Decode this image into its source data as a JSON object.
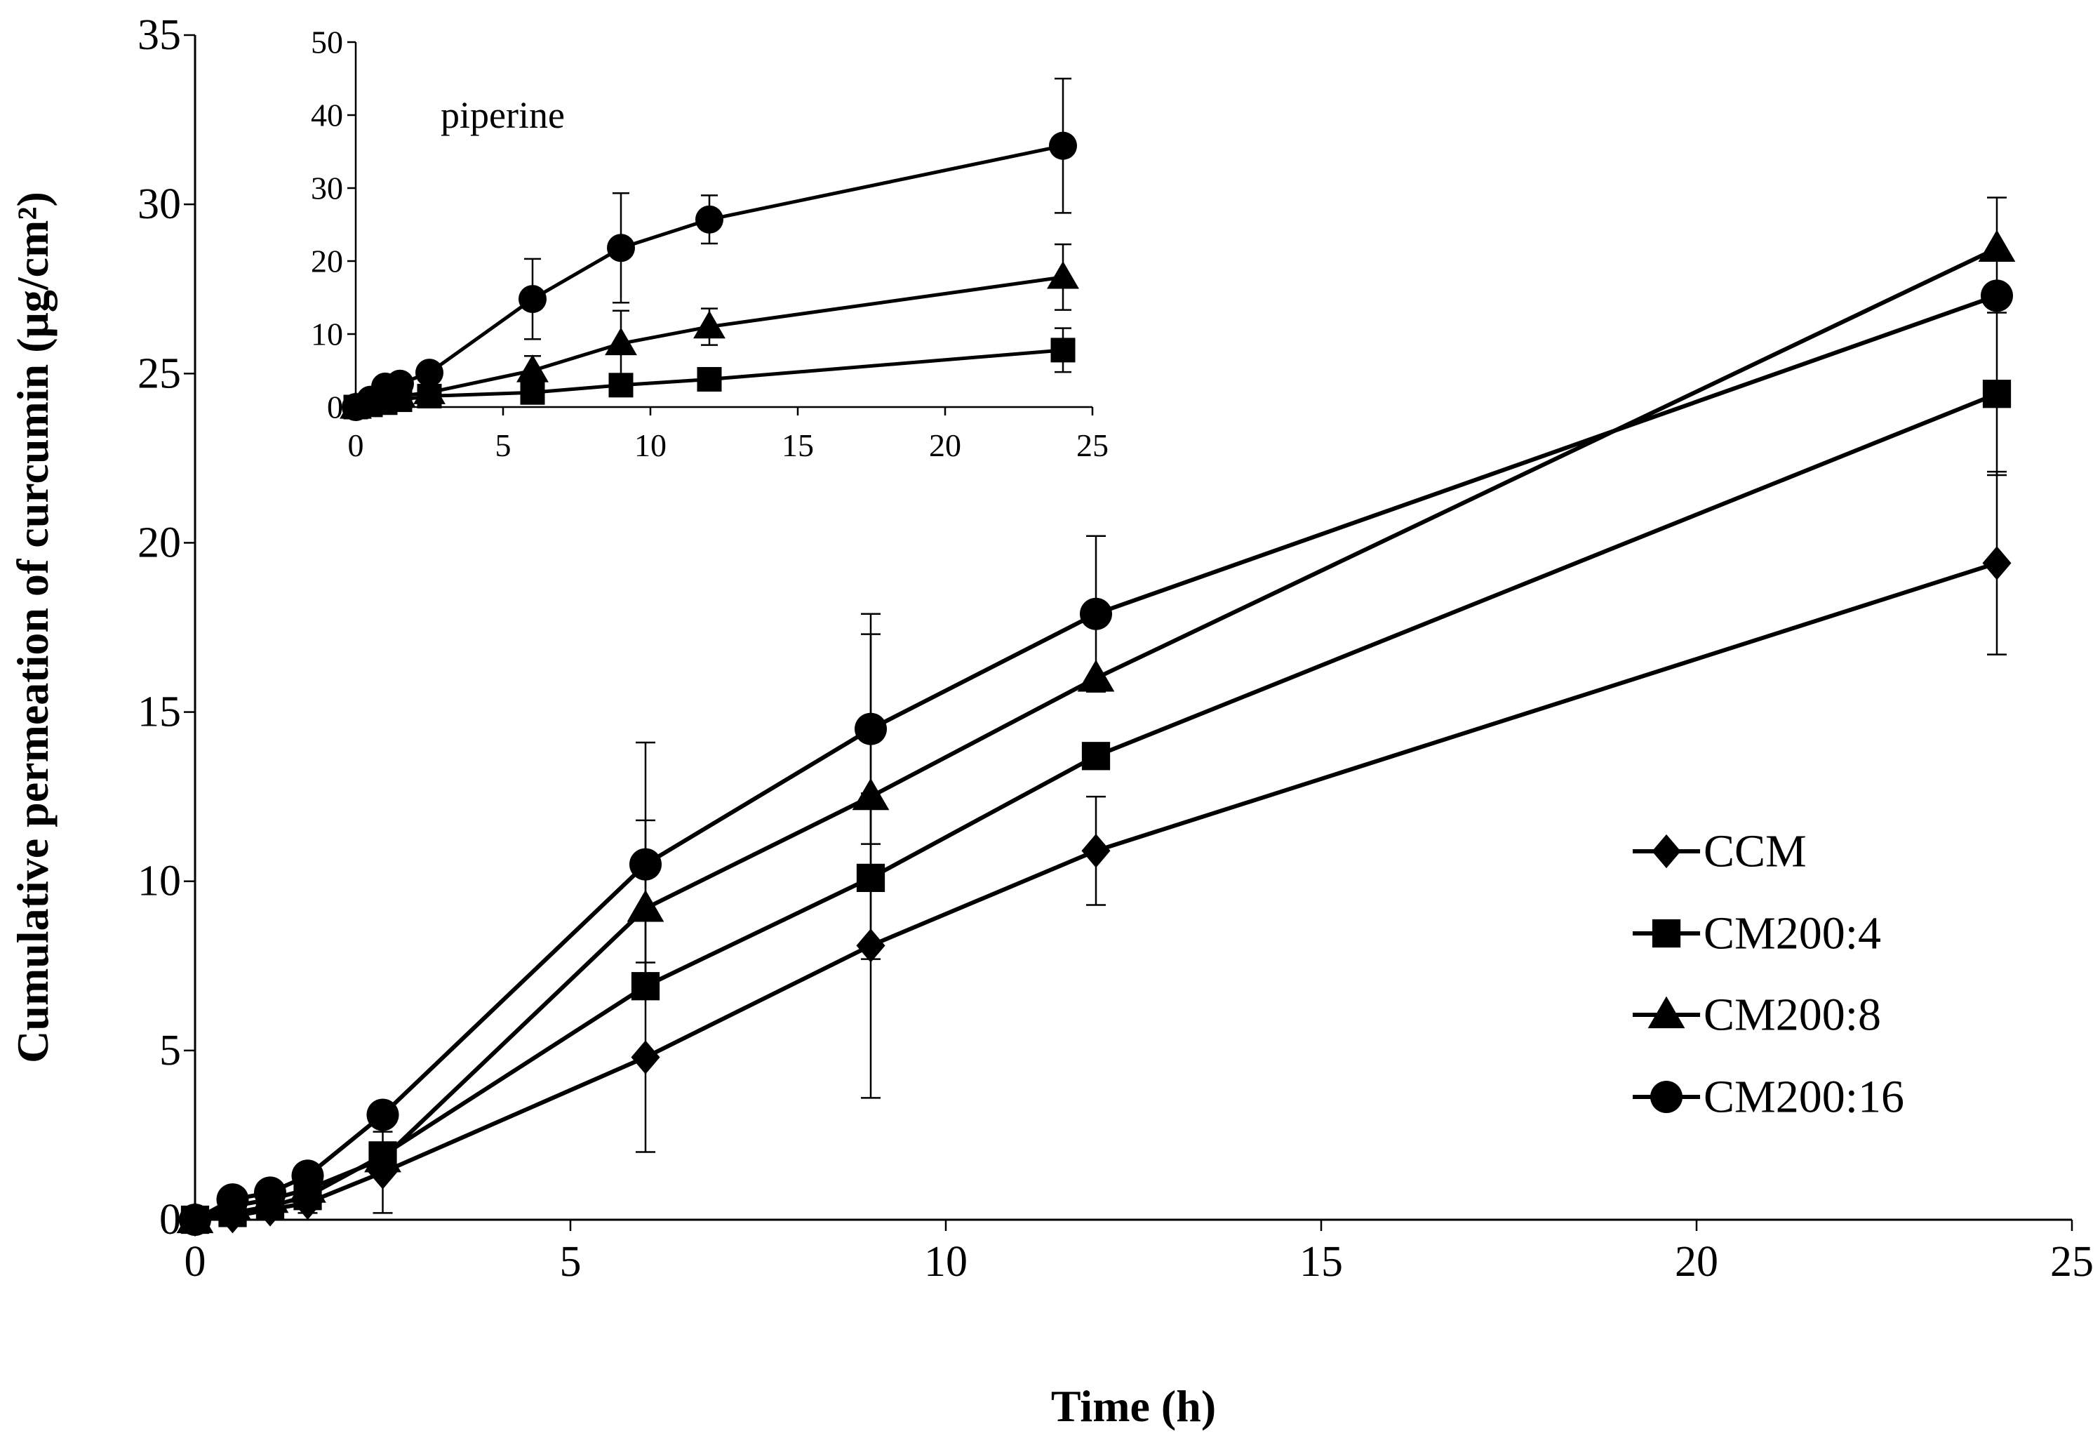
{
  "chart_data": [
    {
      "type": "line",
      "title": "",
      "xlabel": "Time (h)",
      "ylabel": "Cumulative permeation of curcumin (μg/cm²)",
      "xlim": [
        0,
        25
      ],
      "ylim": [
        0,
        35
      ],
      "xticks": [
        0,
        5,
        10,
        15,
        20,
        25
      ],
      "yticks": [
        0,
        5,
        10,
        15,
        20,
        25,
        30,
        35
      ],
      "grid": false,
      "legend_position": "right",
      "x": [
        0,
        0.5,
        1,
        1.5,
        2.5,
        6,
        9,
        12,
        24
      ],
      "series": [
        {
          "name": "CCM",
          "marker": "diamond",
          "values": [
            0,
            0.1,
            0.3,
            0.5,
            1.4,
            4.8,
            8.1,
            10.9,
            19.4
          ],
          "errors": [
            0,
            0,
            0,
            0.3,
            1.2,
            2.8,
            4.5,
            1.6,
            2.7
          ]
        },
        {
          "name": "CM200:4",
          "marker": "square",
          "values": [
            0,
            0.2,
            0.4,
            0.7,
            1.9,
            6.9,
            10.1,
            13.7,
            24.4
          ],
          "errors": [
            0,
            0,
            0,
            0,
            0,
            0,
            0,
            0,
            2.4
          ]
        },
        {
          "name": "CM200:8",
          "marker": "triangle",
          "values": [
            0,
            0.4,
            0.6,
            0.9,
            1.8,
            9.2,
            12.5,
            16.0,
            28.7
          ],
          "errors": [
            0,
            0,
            0,
            0,
            0,
            2.6,
            4.8,
            0,
            1.5
          ]
        },
        {
          "name": "CM200:16",
          "marker": "circle",
          "values": [
            0,
            0.6,
            0.8,
            1.3,
            3.1,
            10.5,
            14.5,
            17.9,
            27.3
          ],
          "errors": [
            0,
            0,
            0,
            0,
            0,
            3.6,
            3.4,
            2.3,
            0
          ]
        }
      ]
    },
    {
      "type": "line",
      "title": "",
      "annotation": "piperine",
      "xlabel": "",
      "ylabel": "",
      "xlim": [
        0,
        25
      ],
      "ylim": [
        0,
        50
      ],
      "xticks": [
        0,
        5,
        10,
        15,
        20,
        25
      ],
      "yticks": [
        0,
        10,
        20,
        30,
        40,
        50
      ],
      "grid": false,
      "x": [
        0,
        0.5,
        1,
        1.5,
        2.5,
        6,
        9,
        12,
        24
      ],
      "series": [
        {
          "name": "CM200:4",
          "marker": "square",
          "values": [
            0,
            0.3,
            0.6,
            1.0,
            1.5,
            2.0,
            3.0,
            3.8,
            7.8
          ],
          "errors": [
            0,
            0,
            0,
            0,
            0,
            0,
            0,
            0,
            3.0
          ]
        },
        {
          "name": "CM200:8",
          "marker": "triangle",
          "values": [
            0,
            0.6,
            1.0,
            1.5,
            2.0,
            5.0,
            8.7,
            11.0,
            17.8
          ],
          "errors": [
            0,
            0,
            0,
            0,
            0,
            2.0,
            4.5,
            2.5,
            4.5
          ]
        },
        {
          "name": "CM200:16",
          "marker": "circle",
          "values": [
            0,
            1.0,
            2.8,
            3.2,
            4.7,
            14.8,
            21.8,
            25.7,
            35.8
          ],
          "errors": [
            0,
            0,
            0,
            0,
            0,
            5.5,
            7.5,
            3.3,
            9.2
          ]
        }
      ]
    }
  ]
}
